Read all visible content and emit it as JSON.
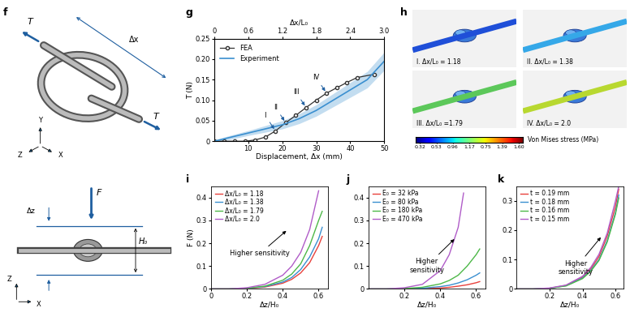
{
  "panel_labels": [
    "f",
    "g",
    "h",
    "i",
    "j",
    "k"
  ],
  "diagram_f": {
    "tension_labels": [
      "T",
      "T"
    ],
    "length_label": "Δx",
    "axes": [
      "Y",
      "Z",
      "X"
    ]
  },
  "diagram_compress": {
    "force_label": "F",
    "gap_label": "Δz",
    "height_label": "H₀",
    "axes": [
      "Z",
      "X"
    ]
  },
  "panel_h": {
    "images": [
      "I. Δx/L₀ = 1.18",
      "II. Δx/L₀ = 1.38",
      "III. Δx/L₀ =1.79",
      "IV. Δx/L₀ = 2.0"
    ],
    "colorbar": {
      "label": "Von Mises stress (MPa)",
      "tick_labels": [
        "0.32",
        "0.53",
        "0.96",
        "1.17",
        "0.75",
        "1.39",
        "1.60"
      ]
    }
  },
  "chart_data": [
    {
      "type": "line",
      "xlabel": "Displacement, Δx (mm)",
      "ylabel": "T (N)",
      "x2label": "Δx/L₀",
      "xlim": [
        0,
        50
      ],
      "xticks": [
        10,
        20,
        30,
        40,
        50
      ],
      "x2lim": [
        0,
        3.0
      ],
      "x2ticks": [
        0,
        0.6,
        1.2,
        1.8,
        2.4,
        3.0
      ],
      "ylim": [
        0,
        0.25
      ],
      "yticks": [
        0,
        0.05,
        {
          "value": 0.1,
          "label": "0.10"
        },
        0.15,
        {
          "value": 0.2,
          "label": "0.20"
        },
        0.25
      ],
      "legend": "upper left",
      "series": [
        {
          "name": "FEA",
          "color": "#333333",
          "marker": "o",
          "x": [
            0,
            3,
            6,
            9,
            12,
            15,
            18,
            21,
            24,
            27,
            30,
            33,
            36,
            39,
            42,
            47
          ],
          "values": [
            0,
            0,
            0,
            0,
            0.003,
            0.01,
            0.025,
            0.045,
            0.063,
            0.082,
            0.1,
            0.117,
            0.13,
            0.143,
            0.155,
            0.163
          ]
        },
        {
          "name": "Experiment",
          "color": "#3a8fd0",
          "x": [
            0,
            5,
            10,
            15,
            20,
            25,
            30,
            35,
            40,
            45,
            50
          ],
          "values": [
            0,
            0.01,
            0.02,
            0.03,
            0.04,
            0.055,
            0.075,
            0.1,
            0.125,
            0.15,
            0.195
          ],
          "error": [
            0.003,
            0.005,
            0.006,
            0.008,
            0.01,
            0.012,
            0.014,
            0.016,
            0.018,
            0.02,
            0.022
          ]
        }
      ],
      "annotations": [
        {
          "text": "I",
          "x": 18,
          "y": 0.025
        },
        {
          "text": "II",
          "x": 21,
          "y": 0.045
        },
        {
          "text": "III",
          "x": 27,
          "y": 0.082
        },
        {
          "text": "IV",
          "x": 33,
          "y": 0.117
        }
      ]
    },
    {
      "type": "line",
      "xlabel": "Δz/H₀",
      "ylabel": "F (N)",
      "xlim": [
        0,
        0.65
      ],
      "xticks": [
        0,
        0.2,
        0.4,
        0.6
      ],
      "ylim": [
        0,
        0.45
      ],
      "yticks": [
        0,
        0.1,
        0.2,
        0.3,
        0.4
      ],
      "legend": "upper left",
      "annotations": [
        {
          "text": "Higher sensitivity"
        }
      ],
      "series": [
        {
          "name": "Δx/L₀ = 1.18",
          "color": "#e8413c",
          "x": [
            0,
            0.1,
            0.2,
            0.3,
            0.4,
            0.45,
            0.5,
            0.55,
            0.6,
            0.62
          ],
          "values": [
            0,
            0,
            0.002,
            0.008,
            0.025,
            0.042,
            0.07,
            0.115,
            0.19,
            0.23
          ]
        },
        {
          "name": "Δx/L₀ = 1.38",
          "color": "#3a8fd0",
          "x": [
            0,
            0.1,
            0.2,
            0.3,
            0.4,
            0.45,
            0.5,
            0.55,
            0.6,
            0.62
          ],
          "values": [
            0,
            0,
            0.003,
            0.01,
            0.03,
            0.05,
            0.085,
            0.14,
            0.22,
            0.27
          ]
        },
        {
          "name": "Δx/L₀ = 1.79",
          "color": "#4db848",
          "x": [
            0,
            0.1,
            0.2,
            0.3,
            0.4,
            0.45,
            0.5,
            0.55,
            0.6,
            0.62
          ],
          "values": [
            0,
            0,
            0.003,
            0.012,
            0.038,
            0.065,
            0.11,
            0.19,
            0.3,
            0.34
          ]
        },
        {
          "name": "Δx/L₀ = 2.0",
          "color": "#b05cc8",
          "x": [
            0,
            0.1,
            0.2,
            0.3,
            0.4,
            0.45,
            0.5,
            0.55,
            0.6
          ],
          "values": [
            0,
            0,
            0.005,
            0.02,
            0.06,
            0.1,
            0.16,
            0.26,
            0.43
          ]
        }
      ]
    },
    {
      "type": "line",
      "xlabel": "Δz/H₀",
      "xlim": [
        0,
        0.65
      ],
      "xticks": [
        0.2,
        0.4,
        0.6
      ],
      "ylim": [
        0,
        0.45
      ],
      "yticks": [
        0,
        0.1,
        0.2,
        0.3,
        0.4
      ],
      "legend": "upper left",
      "annotations": [
        {
          "text": "Higher\nsensitivity"
        }
      ],
      "series": [
        {
          "name": "E₀ = 32 kPa",
          "color": "#e8413c",
          "x": [
            0,
            0.1,
            0.2,
            0.3,
            0.4,
            0.45,
            0.5,
            0.55,
            0.6,
            0.62
          ],
          "values": [
            0,
            0,
            0,
            0.001,
            0.004,
            0.007,
            0.012,
            0.018,
            0.027,
            0.032
          ]
        },
        {
          "name": "E₀ = 80 kPa",
          "color": "#3a8fd0",
          "x": [
            0,
            0.1,
            0.2,
            0.3,
            0.4,
            0.45,
            0.5,
            0.55,
            0.6,
            0.62
          ],
          "values": [
            0,
            0,
            0.001,
            0.003,
            0.01,
            0.016,
            0.026,
            0.04,
            0.06,
            0.07
          ]
        },
        {
          "name": "E₀ = 180 kPa",
          "color": "#4db848",
          "x": [
            0,
            0.1,
            0.2,
            0.3,
            0.4,
            0.45,
            0.5,
            0.55,
            0.6,
            0.62
          ],
          "values": [
            0,
            0,
            0.002,
            0.007,
            0.022,
            0.037,
            0.06,
            0.1,
            0.15,
            0.175
          ]
        },
        {
          "name": "E₀ = 470 kPa",
          "color": "#b05cc8",
          "x": [
            0,
            0.1,
            0.2,
            0.3,
            0.4,
            0.45,
            0.5,
            0.53
          ],
          "values": [
            0,
            0,
            0.005,
            0.02,
            0.08,
            0.15,
            0.27,
            0.42
          ]
        }
      ]
    },
    {
      "type": "line",
      "xlabel": "Δz/H₀",
      "xlim": [
        0,
        0.65
      ],
      "xticks": [
        0.2,
        0.4,
        0.6
      ],
      "ylim": [
        0,
        0.35
      ],
      "yticks": [
        0,
        0.1,
        0.2,
        0.3
      ],
      "legend": "upper left",
      "annotations": [
        {
          "text": "Higher\nsensitivity"
        }
      ],
      "series": [
        {
          "name": "t = 0.19 mm",
          "color": "#e8413c",
          "x": [
            0,
            0.1,
            0.2,
            0.3,
            0.4,
            0.45,
            0.5,
            0.55,
            0.6,
            0.62
          ],
          "values": [
            0,
            0,
            0.002,
            0.012,
            0.04,
            0.068,
            0.11,
            0.18,
            0.28,
            0.34
          ]
        },
        {
          "name": "t = 0.18 mm",
          "color": "#3a8fd0",
          "x": [
            0,
            0.1,
            0.2,
            0.3,
            0.4,
            0.45,
            0.5,
            0.55,
            0.6,
            0.62
          ],
          "values": [
            0,
            0,
            0.002,
            0.011,
            0.037,
            0.063,
            0.1,
            0.165,
            0.26,
            0.32
          ]
        },
        {
          "name": "t = 0.16 mm",
          "color": "#4db848",
          "x": [
            0,
            0.1,
            0.2,
            0.3,
            0.4,
            0.45,
            0.5,
            0.55,
            0.6,
            0.62
          ],
          "values": [
            0,
            0,
            0.002,
            0.01,
            0.035,
            0.06,
            0.097,
            0.16,
            0.255,
            0.31
          ]
        },
        {
          "name": "t = 0.15 mm",
          "color": "#b05cc8",
          "x": [
            0,
            0.1,
            0.2,
            0.3,
            0.4,
            0.45,
            0.5,
            0.55,
            0.6,
            0.62
          ],
          "values": [
            0,
            0,
            0.003,
            0.013,
            0.043,
            0.073,
            0.118,
            0.19,
            0.3,
            0.35
          ]
        }
      ]
    }
  ]
}
